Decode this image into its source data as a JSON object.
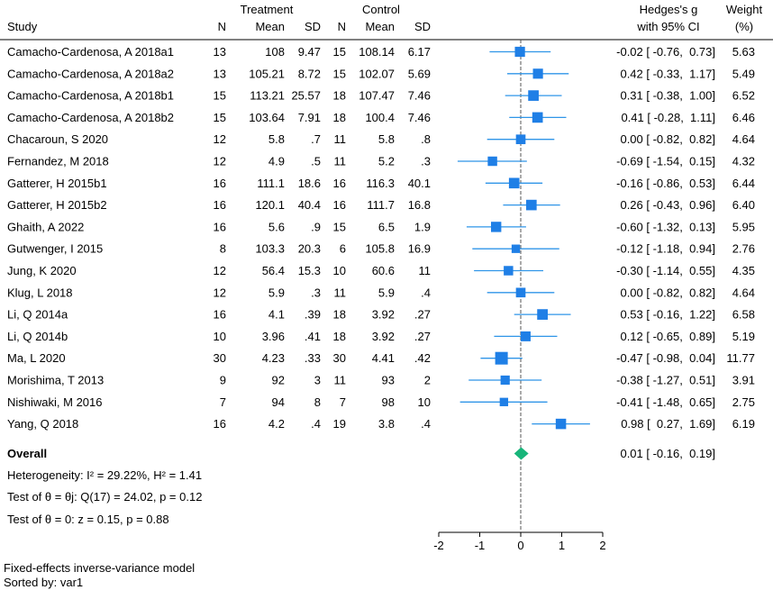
{
  "chart_data": {
    "type": "forest",
    "header": {
      "treatment_group": "Treatment",
      "control_group": "Control",
      "study": "Study",
      "n": "N",
      "mean": "Mean",
      "sd": "SD",
      "effect_line1": "Hedges's g",
      "effect_line2": "with 95% CI",
      "weight_line1": "Weight",
      "weight_line2": "(%)"
    },
    "studies": [
      {
        "study": "Camacho-Cardenosa, A 2018a1",
        "t_n": "13",
        "t_mean": "108",
        "t_sd": "9.47",
        "c_n": "15",
        "c_mean": "108.14",
        "c_sd": "6.17",
        "g": -0.02,
        "lo": -0.76,
        "hi": 0.73,
        "ci_text": "-0.02 [ -0.76,  0.73]",
        "weight": 5.63,
        "weight_text": "5.63"
      },
      {
        "study": "Camacho-Cardenosa, A 2018a2",
        "t_n": "13",
        "t_mean": "105.21",
        "t_sd": "8.72",
        "c_n": "15",
        "c_mean": "102.07",
        "c_sd": "5.69",
        "g": 0.42,
        "lo": -0.33,
        "hi": 1.17,
        "ci_text": "0.42 [ -0.33,  1.17]",
        "weight": 5.49,
        "weight_text": "5.49"
      },
      {
        "study": "Camacho-Cardenosa, A 2018b1",
        "t_n": "15",
        "t_mean": "113.21",
        "t_sd": "25.57",
        "c_n": "18",
        "c_mean": "107.47",
        "c_sd": "7.46",
        "g": 0.31,
        "lo": -0.38,
        "hi": 1.0,
        "ci_text": "0.31 [ -0.38,  1.00]",
        "weight": 6.52,
        "weight_text": "6.52"
      },
      {
        "study": "Camacho-Cardenosa, A 2018b2",
        "t_n": "15",
        "t_mean": "103.64",
        "t_sd": "7.91",
        "c_n": "18",
        "c_mean": "100.4",
        "c_sd": "7.46",
        "g": 0.41,
        "lo": -0.28,
        "hi": 1.11,
        "ci_text": "0.41 [ -0.28,  1.11]",
        "weight": 6.46,
        "weight_text": "6.46"
      },
      {
        "study": "Chacaroun, S 2020",
        "t_n": "12",
        "t_mean": "5.8",
        "t_sd": ".7",
        "c_n": "11",
        "c_mean": "5.8",
        "c_sd": ".8",
        "g": 0.0,
        "lo": -0.82,
        "hi": 0.82,
        "ci_text": "0.00 [ -0.82,  0.82]",
        "weight": 4.64,
        "weight_text": "4.64"
      },
      {
        "study": "Fernandez, M 2018",
        "t_n": "12",
        "t_mean": "4.9",
        "t_sd": ".5",
        "c_n": "11",
        "c_mean": "5.2",
        "c_sd": ".3",
        "g": -0.69,
        "lo": -1.54,
        "hi": 0.15,
        "ci_text": "-0.69 [ -1.54,  0.15]",
        "weight": 4.32,
        "weight_text": "4.32"
      },
      {
        "study": "Gatterer, H 2015b1",
        "t_n": "16",
        "t_mean": "111.1",
        "t_sd": "18.6",
        "c_n": "16",
        "c_mean": "116.3",
        "c_sd": "40.1",
        "g": -0.16,
        "lo": -0.86,
        "hi": 0.53,
        "ci_text": "-0.16 [ -0.86,  0.53]",
        "weight": 6.44,
        "weight_text": "6.44"
      },
      {
        "study": "Gatterer, H 2015b2",
        "t_n": "16",
        "t_mean": "120.1",
        "t_sd": "40.4",
        "c_n": "16",
        "c_mean": "111.7",
        "c_sd": "16.8",
        "g": 0.26,
        "lo": -0.43,
        "hi": 0.96,
        "ci_text": "0.26 [ -0.43,  0.96]",
        "weight": 6.4,
        "weight_text": "6.40"
      },
      {
        "study": "Ghaith, A 2022",
        "t_n": "16",
        "t_mean": "5.6",
        "t_sd": ".9",
        "c_n": "15",
        "c_mean": "6.5",
        "c_sd": "1.9",
        "g": -0.6,
        "lo": -1.32,
        "hi": 0.13,
        "ci_text": "-0.60 [ -1.32,  0.13]",
        "weight": 5.95,
        "weight_text": "5.95"
      },
      {
        "study": "Gutwenger, I 2015",
        "t_n": "8",
        "t_mean": "103.3",
        "t_sd": "20.3",
        "c_n": "6",
        "c_mean": "105.8",
        "c_sd": "16.9",
        "g": -0.12,
        "lo": -1.18,
        "hi": 0.94,
        "ci_text": "-0.12 [ -1.18,  0.94]",
        "weight": 2.76,
        "weight_text": "2.76"
      },
      {
        "study": "Jung, K 2020",
        "t_n": "12",
        "t_mean": "56.4",
        "t_sd": "15.3",
        "c_n": "10",
        "c_mean": "60.6",
        "c_sd": "11",
        "g": -0.3,
        "lo": -1.14,
        "hi": 0.55,
        "ci_text": "-0.30 [ -1.14,  0.55]",
        "weight": 4.35,
        "weight_text": "4.35"
      },
      {
        "study": "Klug, L 2018",
        "t_n": "12",
        "t_mean": "5.9",
        "t_sd": ".3",
        "c_n": "11",
        "c_mean": "5.9",
        "c_sd": ".4",
        "g": 0.0,
        "lo": -0.82,
        "hi": 0.82,
        "ci_text": "0.00 [ -0.82,  0.82]",
        "weight": 4.64,
        "weight_text": "4.64"
      },
      {
        "study": "Li, Q 2014a",
        "t_n": "16",
        "t_mean": "4.1",
        "t_sd": ".39",
        "c_n": "18",
        "c_mean": "3.92",
        "c_sd": ".27",
        "g": 0.53,
        "lo": -0.16,
        "hi": 1.22,
        "ci_text": "0.53 [ -0.16,  1.22]",
        "weight": 6.58,
        "weight_text": "6.58"
      },
      {
        "study": "Li, Q 2014b",
        "t_n": "10",
        "t_mean": "3.96",
        "t_sd": ".41",
        "c_n": "18",
        "c_mean": "3.92",
        "c_sd": ".27",
        "g": 0.12,
        "lo": -0.65,
        "hi": 0.89,
        "ci_text": "0.12 [ -0.65,  0.89]",
        "weight": 5.19,
        "weight_text": "5.19"
      },
      {
        "study": "Ma, L 2020",
        "t_n": "30",
        "t_mean": "4.23",
        "t_sd": ".33",
        "c_n": "30",
        "c_mean": "4.41",
        "c_sd": ".42",
        "g": -0.47,
        "lo": -0.98,
        "hi": 0.04,
        "ci_text": "-0.47 [ -0.98,  0.04]",
        "weight": 11.77,
        "weight_text": "11.77"
      },
      {
        "study": "Morishima, T 2013",
        "t_n": "9",
        "t_mean": "92",
        "t_sd": "3",
        "c_n": "11",
        "c_mean": "93",
        "c_sd": "2",
        "g": -0.38,
        "lo": -1.27,
        "hi": 0.51,
        "ci_text": "-0.38 [ -1.27,  0.51]",
        "weight": 3.91,
        "weight_text": "3.91"
      },
      {
        "study": "Nishiwaki, M 2016",
        "t_n": "7",
        "t_mean": "94",
        "t_sd": "8",
        "c_n": "7",
        "c_mean": "98",
        "c_sd": "10",
        "g": -0.41,
        "lo": -1.48,
        "hi": 0.65,
        "ci_text": "-0.41 [ -1.48,  0.65]",
        "weight": 2.75,
        "weight_text": "2.75"
      },
      {
        "study": "Yang, Q 2018",
        "t_n": "16",
        "t_mean": "4.2",
        "t_sd": ".4",
        "c_n": "19",
        "c_mean": "3.8",
        "c_sd": ".4",
        "g": 0.98,
        "lo": 0.27,
        "hi": 1.69,
        "ci_text": "0.98 [  0.27,  1.69]",
        "weight": 6.19,
        "weight_text": "6.19"
      }
    ],
    "overall": {
      "label": "Overall",
      "g": 0.01,
      "lo": -0.16,
      "hi": 0.19,
      "ci_text": "0.01 [ -0.16,  0.19]"
    },
    "stats": {
      "heterogeneity": "Heterogeneity: I² = 29.22%, H² = 1.41",
      "test_theta_equal": "Test of θ = θj: Q(17) = 24.02, p = 0.12",
      "test_theta_zero": "Test of θ = 0: z = 0.15, p = 0.88"
    },
    "x_axis": {
      "min": -2,
      "max": 2,
      "ticks": [
        -2,
        -1,
        0,
        1,
        2
      ],
      "tick_labels": [
        "-2",
        "-1",
        "0",
        "1",
        "2"
      ],
      "reference_line": 0
    },
    "colors": {
      "study_marker": "#1f7fe6",
      "ci_line": "#2f95e8",
      "overall_diamond": "#18b57a",
      "ref_line": "#555555"
    }
  },
  "footer": {
    "model": "Fixed-effects inverse-variance model",
    "sorted_by": "Sorted by: var1"
  }
}
